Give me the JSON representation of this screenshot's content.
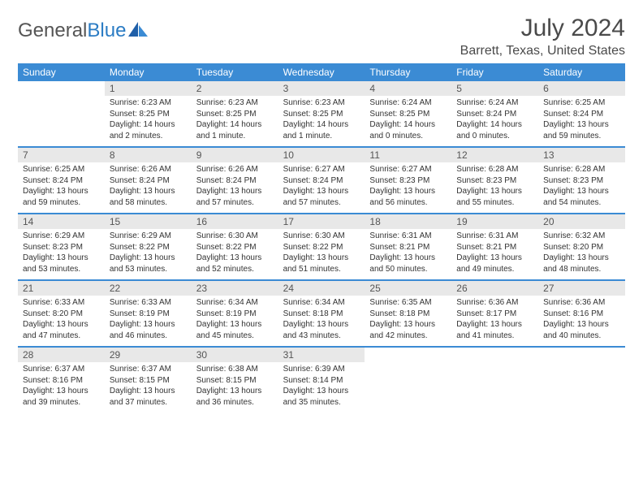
{
  "logo": {
    "text_general": "General",
    "text_blue": "Blue"
  },
  "header": {
    "month_title": "July 2024",
    "location": "Barrett, Texas, United States"
  },
  "colors": {
    "header_bg": "#3b8bd4",
    "header_text": "#ffffff",
    "daynum_bg": "#e8e8e8",
    "week_border": "#3b8bd4",
    "text": "#333333",
    "logo_grey": "#555555",
    "logo_blue": "#2b7cc4"
  },
  "daynames": [
    "Sunday",
    "Monday",
    "Tuesday",
    "Wednesday",
    "Thursday",
    "Friday",
    "Saturday"
  ],
  "weeks": [
    [
      null,
      {
        "n": "1",
        "sr": "6:23 AM",
        "ss": "8:25 PM",
        "dl": "14 hours and 2 minutes."
      },
      {
        "n": "2",
        "sr": "6:23 AM",
        "ss": "8:25 PM",
        "dl": "14 hours and 1 minute."
      },
      {
        "n": "3",
        "sr": "6:23 AM",
        "ss": "8:25 PM",
        "dl": "14 hours and 1 minute."
      },
      {
        "n": "4",
        "sr": "6:24 AM",
        "ss": "8:25 PM",
        "dl": "14 hours and 0 minutes."
      },
      {
        "n": "5",
        "sr": "6:24 AM",
        "ss": "8:24 PM",
        "dl": "14 hours and 0 minutes."
      },
      {
        "n": "6",
        "sr": "6:25 AM",
        "ss": "8:24 PM",
        "dl": "13 hours and 59 minutes."
      }
    ],
    [
      {
        "n": "7",
        "sr": "6:25 AM",
        "ss": "8:24 PM",
        "dl": "13 hours and 59 minutes."
      },
      {
        "n": "8",
        "sr": "6:26 AM",
        "ss": "8:24 PM",
        "dl": "13 hours and 58 minutes."
      },
      {
        "n": "9",
        "sr": "6:26 AM",
        "ss": "8:24 PM",
        "dl": "13 hours and 57 minutes."
      },
      {
        "n": "10",
        "sr": "6:27 AM",
        "ss": "8:24 PM",
        "dl": "13 hours and 57 minutes."
      },
      {
        "n": "11",
        "sr": "6:27 AM",
        "ss": "8:23 PM",
        "dl": "13 hours and 56 minutes."
      },
      {
        "n": "12",
        "sr": "6:28 AM",
        "ss": "8:23 PM",
        "dl": "13 hours and 55 minutes."
      },
      {
        "n": "13",
        "sr": "6:28 AM",
        "ss": "8:23 PM",
        "dl": "13 hours and 54 minutes."
      }
    ],
    [
      {
        "n": "14",
        "sr": "6:29 AM",
        "ss": "8:23 PM",
        "dl": "13 hours and 53 minutes."
      },
      {
        "n": "15",
        "sr": "6:29 AM",
        "ss": "8:22 PM",
        "dl": "13 hours and 53 minutes."
      },
      {
        "n": "16",
        "sr": "6:30 AM",
        "ss": "8:22 PM",
        "dl": "13 hours and 52 minutes."
      },
      {
        "n": "17",
        "sr": "6:30 AM",
        "ss": "8:22 PM",
        "dl": "13 hours and 51 minutes."
      },
      {
        "n": "18",
        "sr": "6:31 AM",
        "ss": "8:21 PM",
        "dl": "13 hours and 50 minutes."
      },
      {
        "n": "19",
        "sr": "6:31 AM",
        "ss": "8:21 PM",
        "dl": "13 hours and 49 minutes."
      },
      {
        "n": "20",
        "sr": "6:32 AM",
        "ss": "8:20 PM",
        "dl": "13 hours and 48 minutes."
      }
    ],
    [
      {
        "n": "21",
        "sr": "6:33 AM",
        "ss": "8:20 PM",
        "dl": "13 hours and 47 minutes."
      },
      {
        "n": "22",
        "sr": "6:33 AM",
        "ss": "8:19 PM",
        "dl": "13 hours and 46 minutes."
      },
      {
        "n": "23",
        "sr": "6:34 AM",
        "ss": "8:19 PM",
        "dl": "13 hours and 45 minutes."
      },
      {
        "n": "24",
        "sr": "6:34 AM",
        "ss": "8:18 PM",
        "dl": "13 hours and 43 minutes."
      },
      {
        "n": "25",
        "sr": "6:35 AM",
        "ss": "8:18 PM",
        "dl": "13 hours and 42 minutes."
      },
      {
        "n": "26",
        "sr": "6:36 AM",
        "ss": "8:17 PM",
        "dl": "13 hours and 41 minutes."
      },
      {
        "n": "27",
        "sr": "6:36 AM",
        "ss": "8:16 PM",
        "dl": "13 hours and 40 minutes."
      }
    ],
    [
      {
        "n": "28",
        "sr": "6:37 AM",
        "ss": "8:16 PM",
        "dl": "13 hours and 39 minutes."
      },
      {
        "n": "29",
        "sr": "6:37 AM",
        "ss": "8:15 PM",
        "dl": "13 hours and 37 minutes."
      },
      {
        "n": "30",
        "sr": "6:38 AM",
        "ss": "8:15 PM",
        "dl": "13 hours and 36 minutes."
      },
      {
        "n": "31",
        "sr": "6:39 AM",
        "ss": "8:14 PM",
        "dl": "13 hours and 35 minutes."
      },
      null,
      null,
      null
    ]
  ],
  "labels": {
    "sunrise": "Sunrise:",
    "sunset": "Sunset:",
    "daylight": "Daylight:"
  }
}
